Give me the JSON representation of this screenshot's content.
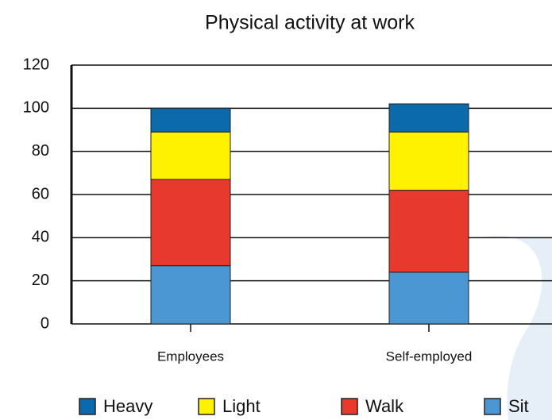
{
  "chart_data": {
    "type": "stacked_bar",
    "title": "Physical activity at work",
    "categories": [
      "Employees",
      "Self-employed"
    ],
    "series": [
      {
        "name": "Heavy",
        "color": "#0a6aab",
        "values": [
          11,
          13
        ]
      },
      {
        "name": "Light",
        "color": "#fff200",
        "values": [
          22,
          27
        ]
      },
      {
        "name": "Walk",
        "color": "#e8392f",
        "values": [
          40,
          38
        ]
      },
      {
        "name": "Sit",
        "color": "#4a97d4",
        "values": [
          27,
          24
        ]
      }
    ],
    "ylim": [
      0,
      120
    ],
    "yticks": [
      0,
      20,
      40,
      60,
      80,
      100,
      120
    ],
    "grid": true
  }
}
